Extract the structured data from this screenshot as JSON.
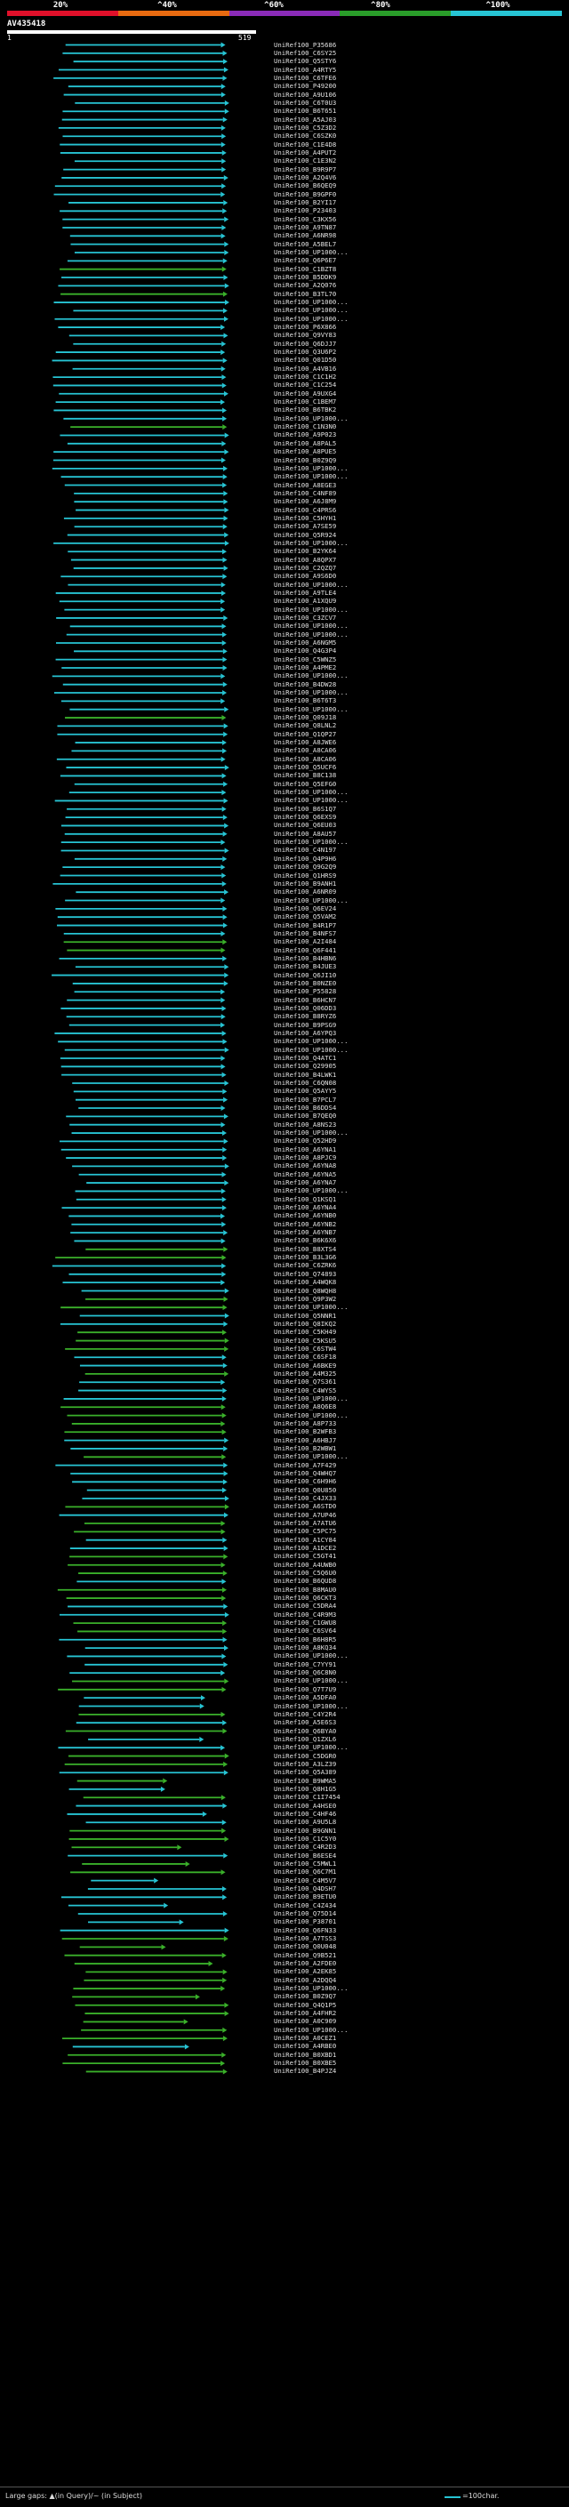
{
  "scale": {
    "labels": [
      "20%",
      "^40%",
      "^60%",
      "^80%",
      "^100%"
    ],
    "colors": [
      "#e0102a",
      "#e86a10",
      "#8a2bb8",
      "#2a9d2a",
      "#27c4d4"
    ]
  },
  "query": {
    "title": "AV435418",
    "start": "1",
    "end": "519"
  },
  "hit_colors": {
    "high": "#27c4d4",
    "mid": "#3ab02a"
  },
  "hits": [
    "UniRef100_P35686",
    "UniRef100_C6SY25",
    "UniRef100_Q5STY6",
    "UniRef100_A4RTY5",
    "UniRef100_C6TFE6",
    "UniRef100_P49200",
    "UniRef100_A9U106",
    "UniRef100_C6T0U3",
    "UniRef100_B6T651",
    "UniRef100_A5AJ03",
    "UniRef100_C5Z3D2",
    "UniRef100_C6SZK0",
    "UniRef100_C1E4D8",
    "UniRef100_A4PUT2",
    "UniRef100_C1E3N2",
    "UniRef100_B9R9P7",
    "UniRef100_A2Q4V6",
    "UniRef100_B6QEQ9",
    "UniRef100_B9GPF0",
    "UniRef100_B2YI17",
    "UniRef100_P23403",
    "UniRef100_C3KX56",
    "UniRef100_A9TN87",
    "UniRef100_A6NR98",
    "UniRef100_A5BEL7",
    "UniRef100_UP1000...",
    "UniRef100_Q6P6E7",
    "UniRef100_C1BZT8",
    "UniRef100_B5DDK9",
    "UniRef100_A2Q076",
    "UniRef100_B3TL70",
    "UniRef100_UP1000...",
    "UniRef100_UP1000...",
    "UniRef100_UP1000...",
    "UniRef100_P6X866",
    "UniRef100_Q9VY83",
    "UniRef100_Q6DJJ7",
    "UniRef100_Q3U6P2",
    "UniRef100_Q01D50",
    "UniRef100_A4VB16",
    "UniRef100_C1C1H2",
    "UniRef100_C1C254",
    "UniRef100_A9UXG4",
    "UniRef100_C1BEM7",
    "UniRef100_B6TBK2",
    "UniRef100_UP1000...",
    "UniRef100_C1N3N0",
    "UniRef100_A9P023",
    "UniRef100_A8PAL5",
    "UniRef100_A8PUE5",
    "UniRef100_B0Z9Q9",
    "UniRef100_UP1000...",
    "UniRef100_UP1000...",
    "UniRef100_A8EGE3",
    "UniRef100_C4NF89",
    "UniRef100_A6J8M9",
    "UniRef100_C4PRS6",
    "UniRef100_C5HYH1",
    "UniRef100_A7SE59",
    "UniRef100_Q5R924",
    "UniRef100_UP1000...",
    "UniRef100_B2YK64",
    "UniRef100_A8QPX7",
    "UniRef100_C2QZQ7",
    "UniRef100_A9S6D0",
    "UniRef100_UP1000...",
    "UniRef100_A9TLE4",
    "UniRef100_A1XQU9",
    "UniRef100_UP1000...",
    "UniRef100_C3ZCV7",
    "UniRef100_UP1000...",
    "UniRef100_UP1000...",
    "UniRef100_A6NGM5",
    "UniRef100_Q4G3P4",
    "UniRef100_C5WNZ5",
    "UniRef100_A4PME2",
    "UniRef100_UP1000...",
    "UniRef100_B4DW28",
    "UniRef100_UP1000...",
    "UniRef100_B6T6T3",
    "UniRef100_UP1000...",
    "UniRef100_Q09J18",
    "UniRef100_Q8LNL2",
    "UniRef100_Q1QP27",
    "UniRef100_A8JWE6",
    "UniRef100_A8CA06",
    "UniRef100_A8CA06",
    "UniRef100_Q5UCF6",
    "UniRef100_B8C138",
    "UniRef100_Q5EFG0",
    "UniRef100_UP1000...",
    "UniRef100_UP1000...",
    "UniRef100_B6S1Q7",
    "UniRef100_Q6EXS9",
    "UniRef100_Q6EU03",
    "UniRef100_A8AU57",
    "UniRef100_UP1000...",
    "UniRef100_C4N197",
    "UniRef100_Q4P9H6",
    "UniRef100_Q9G2Q9",
    "UniRef100_Q1HRS9",
    "UniRef100_B9ANH1",
    "UniRef100_A6NR09",
    "UniRef100_UP1000...",
    "UniRef100_Q6EV24",
    "UniRef100_Q5VAM2",
    "UniRef100_B4R1P7",
    "UniRef100_B4NFS7",
    "UniRef100_A2I484",
    "UniRef100_Q6F441",
    "UniRef100_B4HBN6",
    "UniRef100_B4JUE3",
    "UniRef100_Q6JI10",
    "UniRef100_B0NZE0",
    "UniRef100_P55828",
    "UniRef100_B6HCN7",
    "UniRef100_Q06DD3",
    "UniRef100_B8RYZ6",
    "UniRef100_B9PSG9",
    "UniRef100_A6YPQ3",
    "UniRef100_UP1000...",
    "UniRef100_UP1000...",
    "UniRef100_Q4ATC1",
    "UniRef100_Q29905",
    "UniRef100_B4LWK1",
    "UniRef100_C6QN08",
    "UniRef100_Q5AYY5",
    "UniRef100_B7PCL7",
    "UniRef100_B6DDS4",
    "UniRef100_B7QEQ0",
    "UniRef100_A8NS23",
    "UniRef100_UP1000...",
    "UniRef100_Q52HD9",
    "UniRef100_A6YNA1",
    "UniRef100_A8PJC9",
    "UniRef100_A6YNA8",
    "UniRef100_A6YNA5",
    "UniRef100_A6YNA7",
    "UniRef100_UP1000...",
    "UniRef100_Q1KSQ1",
    "UniRef100_A6YNA4",
    "UniRef100_A6YNB0",
    "UniRef100_A6YNB2",
    "UniRef100_A6YNB7",
    "UniRef100_B6K6X6",
    "UniRef100_B8XTS4",
    "UniRef100_B3L3G6",
    "UniRef100_C6ZRK6",
    "UniRef100_Q74893",
    "UniRef100_A4WQK8",
    "UniRef100_Q8WQH8",
    "UniRef100_Q9P3W2",
    "UniRef100_UP1000...",
    "UniRef100_Q5NNR1",
    "UniRef100_Q8IKQ2",
    "UniRef100_C5KH49",
    "UniRef100_C5KSU5",
    "UniRef100_C6STW4",
    "UniRef100_C6SF18",
    "UniRef100_A6BKE9",
    "UniRef100_A4M325",
    "UniRef100_Q7S361",
    "UniRef100_C4WYS5",
    "UniRef100_UP1000...",
    "UniRef100_A8Q6E8",
    "UniRef100_UP1000...",
    "UniRef100_A8P733",
    "UniRef100_B2WFB3",
    "UniRef100_A6HBJ7",
    "UniRef100_B2WBW1",
    "UniRef100_UP1000...",
    "UniRef100_A7F429",
    "UniRef100_Q4WHQ7",
    "UniRef100_C6H9H6",
    "UniRef100_Q0U850",
    "UniRef100_C4JX33",
    "UniRef100_A6STD0",
    "UniRef100_A7UP46",
    "UniRef100_A7ATU6",
    "UniRef100_C5PC75",
    "UniRef100_A1CY84",
    "UniRef100_A1DCE2",
    "UniRef100_C5GT41",
    "UniRef100_A4UWB0",
    "UniRef100_C5Q6U0",
    "UniRef100_B6QUD8",
    "UniRef100_B8MAU0",
    "UniRef100_Q6CKT3",
    "UniRef100_C5DRA4",
    "UniRef100_C4R9M3",
    "UniRef100_C1GWU8",
    "UniRef100_C6SV64",
    "UniRef100_B6H8R5",
    "UniRef100_A8KQ34",
    "UniRef100_UP1000...",
    "UniRef100_C7YY91",
    "UniRef100_Q6C8N0",
    "UniRef100_UP1000...",
    "UniRef100_Q7T7U9",
    "UniRef100_A5DFA0",
    "UniRef100_UP1000...",
    "UniRef100_C4Y2R4",
    "UniRef100_A5E6S3",
    "UniRef100_Q6BYA0",
    "UniRef100_Q1ZXL6",
    "UniRef100_UP1000...",
    "UniRef100_C5DGR0",
    "UniRef100_A3LZ39",
    "UniRef100_Q5A389",
    "UniRef100_B9WMA5",
    "UniRef100_Q8H1G5",
    "UniRef100_C1I7454",
    "UniRef100_A4HSE0",
    "UniRef100_C4HF46",
    "UniRef100_A9U5L8",
    "UniRef100_B9GNN1",
    "UniRef100_C1C5Y0",
    "UniRef100_C4R2D3",
    "UniRef100_B6ESE4",
    "UniRef100_C5MWL1",
    "UniRef100_Q6C7M1",
    "UniRef100_C4M5V7",
    "UniRef100_Q4DSH7",
    "UniRef100_B9ETU0",
    "UniRef100_C4Z434",
    "UniRef100_Q75D14",
    "UniRef100_P38701",
    "UniRef100_Q6FN33",
    "UniRef100_A7TSS3",
    "UniRef100_Q0U048",
    "UniRef100_Q9B521",
    "UniRef100_A2FDE0",
    "UniRef100_A2EK85",
    "UniRef100_A2DQQ4",
    "UniRef100_UP1000...",
    "UniRef100_B0Z9Q7",
    "UniRef100_Q4Q1P5",
    "UniRef100_A4FHR2",
    "UniRef100_A0C909",
    "UniRef100_UP1000...",
    "UniRef100_A0CEZ1",
    "UniRef100_A4RBE0",
    "UniRef100_B0XBD1",
    "UniRef100_B0XBE5",
    "UniRef100_B4PJZ4"
  ],
  "legend": {
    "left": "Large gaps: ▲(in Query)/~ (in Subject)",
    "right": "=100char."
  }
}
